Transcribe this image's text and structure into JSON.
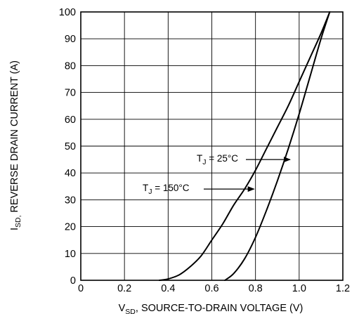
{
  "chart_data": {
    "type": "line",
    "xlabel": {
      "main": "V",
      "sub": "SD",
      "rest": ", SOURCE-TO-DRAIN VOLTAGE (V)"
    },
    "ylabel": {
      "main": "I",
      "sub": "SD,",
      "rest": " REVERSE DRAIN CURRENT (A)"
    },
    "xlim": [
      0,
      1.2
    ],
    "ylim": [
      0,
      100
    ],
    "x_ticks": [
      0,
      0.2,
      0.4,
      0.6,
      0.8,
      1.0,
      1.2
    ],
    "x_tick_labels": [
      "0",
      "0.2",
      "0.4",
      "0.6",
      "0.8",
      "1.0",
      "1.2"
    ],
    "y_ticks": [
      0,
      10,
      20,
      30,
      40,
      50,
      60,
      70,
      80,
      90,
      100
    ],
    "y_tick_labels": [
      "0",
      "10",
      "20",
      "30",
      "40",
      "50",
      "60",
      "70",
      "80",
      "90",
      "100"
    ],
    "grid": true,
    "series": [
      {
        "name": "T_J = 25°C",
        "label": {
          "main": "T",
          "sub": "J",
          "rest": " = 25°C"
        },
        "color": "#000000",
        "points": [
          [
            0.66,
            0
          ],
          [
            0.7,
            2.5
          ],
          [
            0.75,
            8
          ],
          [
            0.8,
            16
          ],
          [
            0.85,
            26
          ],
          [
            0.9,
            37
          ],
          [
            0.95,
            49
          ],
          [
            1.0,
            62
          ],
          [
            1.05,
            76
          ],
          [
            1.1,
            90
          ],
          [
            1.14,
            100
          ]
        ]
      },
      {
        "name": "T_J = 150°C",
        "label": {
          "main": "T",
          "sub": "J",
          "rest": " = 150°C"
        },
        "color": "#000000",
        "points": [
          [
            0.36,
            0
          ],
          [
            0.4,
            0.5
          ],
          [
            0.45,
            2
          ],
          [
            0.5,
            5
          ],
          [
            0.55,
            9
          ],
          [
            0.6,
            15
          ],
          [
            0.65,
            21
          ],
          [
            0.7,
            28
          ],
          [
            0.75,
            34
          ],
          [
            0.8,
            41
          ],
          [
            0.85,
            49
          ],
          [
            0.9,
            57
          ],
          [
            0.95,
            65
          ],
          [
            1.0,
            74
          ],
          [
            1.05,
            83
          ],
          [
            1.1,
            92
          ],
          [
            1.14,
            100
          ]
        ]
      }
    ],
    "annotations": [
      {
        "series": "T_J = 25°C",
        "target": [
          0.965,
          45
        ]
      },
      {
        "series": "T_J = 150°C",
        "target": [
          0.8,
          34
        ]
      }
    ]
  }
}
